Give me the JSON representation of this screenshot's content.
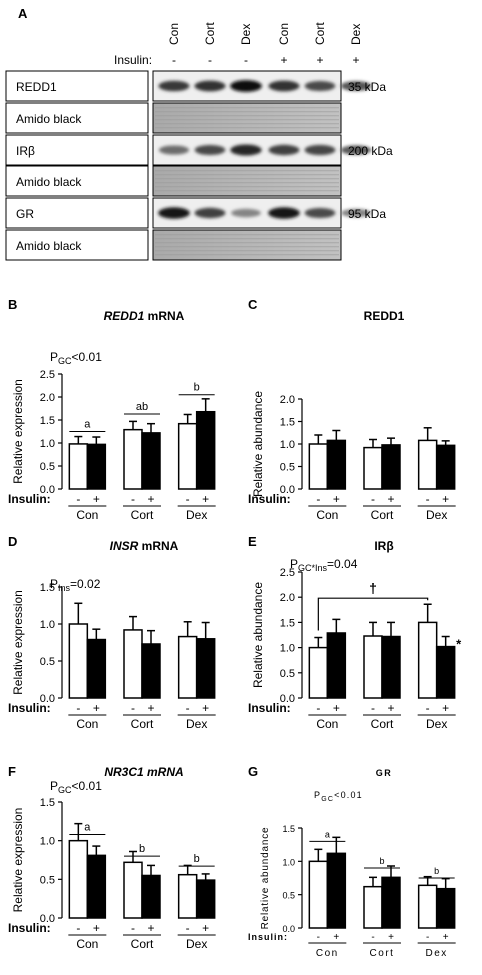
{
  "panel_a": {
    "letter": "A",
    "lane_labels": [
      "Con",
      "Cort",
      "Dex",
      "Con",
      "Cort",
      "Dex"
    ],
    "insulin_label": "Insulin:",
    "insulin_signs": [
      "-",
      "-",
      "-",
      "+",
      "+",
      "+"
    ],
    "blots": [
      {
        "label": "REDD1",
        "type": "band",
        "kda": "35 kDa",
        "intensity": [
          0.78,
          0.8,
          0.95,
          0.8,
          0.7,
          0.65
        ]
      },
      {
        "label": "Amido black",
        "type": "stain"
      },
      {
        "label": "IRβ",
        "type": "band",
        "kda": "200 kDa",
        "intensity": [
          0.55,
          0.7,
          0.85,
          0.75,
          0.72,
          0.62
        ]
      },
      {
        "label": "Amido black",
        "type": "stain"
      },
      {
        "label": "GR",
        "type": "band",
        "kda": "95 kDa",
        "intensity": [
          0.92,
          0.75,
          0.45,
          0.92,
          0.7,
          0.45
        ]
      },
      {
        "label": "Amido black",
        "type": "stain"
      }
    ]
  },
  "chart_data": [
    {
      "panel": "B",
      "type": "bar",
      "title": "REDD1",
      "title_suffix": " mRNA",
      "title_italic": true,
      "stat": {
        "main": "P",
        "sub": "GC",
        "rest": "<0.01"
      },
      "ylabel": "Relative expression",
      "ylim": [
        0,
        2.5
      ],
      "yticks": [
        "0.0",
        "0.5",
        "1.0",
        "1.5",
        "2.0",
        "2.5"
      ],
      "groups": [
        "Con",
        "Cort",
        "Dex"
      ],
      "insulin_label": "Insulin:",
      "signs": [
        "-",
        "+"
      ],
      "series": [
        {
          "name": "-",
          "values": [
            0.98,
            1.29,
            1.42
          ],
          "errors": [
            0.16,
            0.18,
            0.2
          ]
        },
        {
          "name": "+",
          "values": [
            0.97,
            1.22,
            1.68
          ],
          "errors": [
            0.16,
            0.2,
            0.28
          ]
        }
      ],
      "brackets": [
        {
          "group": 0,
          "label": "a",
          "y": 1.25
        },
        {
          "group": 1,
          "label": "ab",
          "y": 1.63
        },
        {
          "group": 2,
          "label": "b",
          "y": 2.05
        }
      ]
    },
    {
      "panel": "C",
      "type": "bar",
      "title": "REDD1",
      "title_suffix": "",
      "title_italic": false,
      "ylabel": "Relative abundance",
      "ylim": [
        0,
        2.0
      ],
      "yticks": [
        "0.0",
        "0.5",
        "1.0",
        "1.5",
        "2.0"
      ],
      "groups": [
        "Con",
        "Cort",
        "Dex"
      ],
      "insulin_label": "Insulin:",
      "signs": [
        "-",
        "+"
      ],
      "series": [
        {
          "name": "-",
          "values": [
            1.0,
            0.92,
            1.08
          ],
          "errors": [
            0.2,
            0.18,
            0.28
          ]
        },
        {
          "name": "+",
          "values": [
            1.08,
            0.98,
            0.97
          ],
          "errors": [
            0.22,
            0.15,
            0.1
          ]
        }
      ]
    },
    {
      "panel": "D",
      "type": "bar",
      "title": "INSR",
      "title_suffix": " mRNA",
      "title_italic": true,
      "stat": {
        "main": "P",
        "sub": "Ins",
        "rest": "=0.02"
      },
      "ylabel": "Relative expression",
      "ylim": [
        0,
        1.5
      ],
      "yticks": [
        "0.0",
        "0.5",
        "1.0",
        "1.5"
      ],
      "groups": [
        "Con",
        "Cort",
        "Dex"
      ],
      "insulin_label": "Insulin:",
      "signs": [
        "-",
        "+"
      ],
      "series": [
        {
          "name": "-",
          "values": [
            1.0,
            0.92,
            0.83
          ],
          "errors": [
            0.28,
            0.18,
            0.2
          ]
        },
        {
          "name": "+",
          "values": [
            0.79,
            0.73,
            0.8
          ],
          "errors": [
            0.14,
            0.18,
            0.22
          ]
        }
      ]
    },
    {
      "panel": "E",
      "type": "bar",
      "title": "IRβ",
      "title_suffix": "",
      "title_italic": false,
      "stat": {
        "main": "P",
        "sub": "GC*Ins",
        "rest": "=0.04"
      },
      "ylabel": "Relative abundance",
      "ylim": [
        0,
        2.5
      ],
      "yticks": [
        "0.0",
        "0.5",
        "1.0",
        "1.5",
        "2.0",
        "2.5"
      ],
      "groups": [
        "Con",
        "Cort",
        "Dex"
      ],
      "insulin_label": "Insulin:",
      "signs": [
        "-",
        "+"
      ],
      "series": [
        {
          "name": "-",
          "values": [
            1.0,
            1.23,
            1.5
          ],
          "errors": [
            0.2,
            0.27,
            0.36
          ]
        },
        {
          "name": "+",
          "values": [
            1.29,
            1.22,
            1.02
          ],
          "errors": [
            0.27,
            0.28,
            0.2
          ]
        }
      ],
      "dagger": "†",
      "dagger_y": 1.98,
      "asterisk": "*"
    },
    {
      "panel": "F",
      "type": "bar",
      "title": "NR3C1 mRNA",
      "title_suffix": "",
      "title_italic": true,
      "stat": {
        "main": "P",
        "sub": "GC",
        "rest": "<0.01"
      },
      "ylabel": "Relative expression",
      "ylim": [
        0,
        1.5
      ],
      "yticks": [
        "0.0",
        "0.5",
        "1.0",
        "1.5"
      ],
      "groups": [
        "Con",
        "Cort",
        "Dex"
      ],
      "insulin_label": "Insulin:",
      "signs": [
        "-",
        "+"
      ],
      "series": [
        {
          "name": "-",
          "values": [
            1.0,
            0.72,
            0.56
          ],
          "errors": [
            0.22,
            0.14,
            0.12
          ]
        },
        {
          "name": "+",
          "values": [
            0.81,
            0.55,
            0.49
          ],
          "errors": [
            0.12,
            0.13,
            0.08
          ]
        }
      ],
      "brackets": [
        {
          "group": 0,
          "label": "a",
          "y": 1.08
        },
        {
          "group": 1,
          "label": "b",
          "y": 0.8
        },
        {
          "group": 2,
          "label": "b",
          "y": 0.67
        }
      ]
    },
    {
      "panel": "G",
      "type": "bar",
      "title": "GR",
      "title_suffix": "",
      "title_italic": false,
      "stat": {
        "main": "P",
        "sub": "GC",
        "rest": "<0.01"
      },
      "ylabel": "Relative abundance",
      "ylim": [
        0,
        1.5
      ],
      "yticks": [
        "0.0",
        "0.5",
        "1.0",
        "1.5"
      ],
      "groups": [
        "Con",
        "Cort",
        "Dex"
      ],
      "insulin_label": "Insulin:",
      "signs": [
        "-",
        "+"
      ],
      "series": [
        {
          "name": "-",
          "values": [
            1.0,
            0.62,
            0.64
          ],
          "errors": [
            0.18,
            0.14,
            0.13
          ]
        },
        {
          "name": "+",
          "values": [
            1.12,
            0.76,
            0.59
          ],
          "errors": [
            0.24,
            0.17,
            0.15
          ]
        }
      ],
      "brackets": [
        {
          "group": 0,
          "label": "a",
          "y": 1.3
        },
        {
          "group": 1,
          "label": "b",
          "y": 0.9
        },
        {
          "group": 2,
          "label": "b",
          "y": 0.75
        }
      ]
    }
  ]
}
